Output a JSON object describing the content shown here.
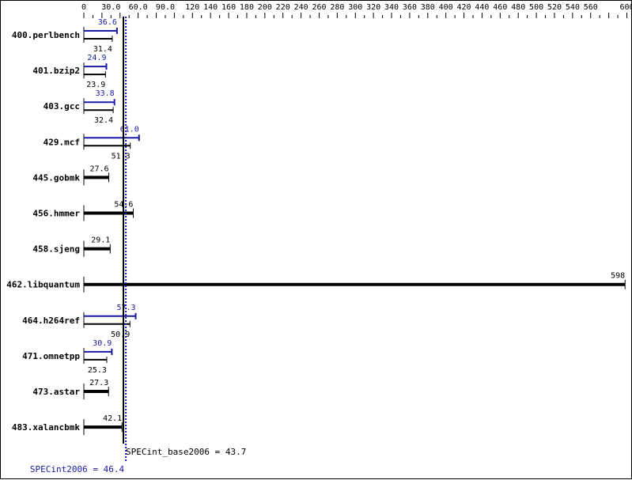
{
  "chart_data": {
    "type": "bar",
    "orientation": "horizontal",
    "xlim": [
      0,
      600
    ],
    "x_tick_labels": [
      "0",
      "30.0",
      "60.0",
      "90.0",
      "120",
      "140",
      "160",
      "180",
      "200",
      "220",
      "240",
      "260",
      "280",
      "300",
      "320",
      "340",
      "360",
      "380",
      "400",
      "420",
      "440",
      "460",
      "480",
      "500",
      "520",
      "540",
      "560",
      "600"
    ],
    "categories": [
      "400.perlbench",
      "401.bzip2",
      "403.gcc",
      "429.mcf",
      "445.gobmk",
      "456.hmmer",
      "458.sjeng",
      "462.libquantum",
      "464.h264ref",
      "471.omnetpp",
      "473.astar",
      "483.xalancbmk"
    ],
    "series": [
      {
        "name": "SPECint2006",
        "color": "#1a1aa6",
        "values": [
          36.6,
          24.9,
          33.8,
          61.0,
          null,
          null,
          null,
          null,
          57.3,
          30.9,
          null,
          null
        ]
      },
      {
        "name": "SPECint_base2006",
        "color": "#000000",
        "values": [
          31.4,
          23.9,
          32.4,
          51.3,
          27.6,
          54.6,
          29.1,
          598,
          50.9,
          25.3,
          27.3,
          42.1
        ]
      }
    ],
    "value_labels": {
      "peak": [
        "36.6",
        "24.9",
        "33.8",
        "61.0",
        "",
        "",
        "",
        "",
        "57.3",
        "30.9",
        "",
        ""
      ],
      "base": [
        "31.4",
        "23.9",
        "32.4",
        "51.3",
        "27.6",
        "54.6",
        "29.1",
        "598",
        "50.9",
        "25.3",
        "27.3",
        "42.1"
      ]
    },
    "reference_lines": [
      {
        "label": "SPECint_base2006 = 43.7",
        "value": 43.7,
        "color": "#000000",
        "style": "solid"
      },
      {
        "label": "SPECint2006 = 46.4",
        "value": 46.4,
        "color": "#1a1aa6",
        "style": "dotted"
      }
    ]
  }
}
